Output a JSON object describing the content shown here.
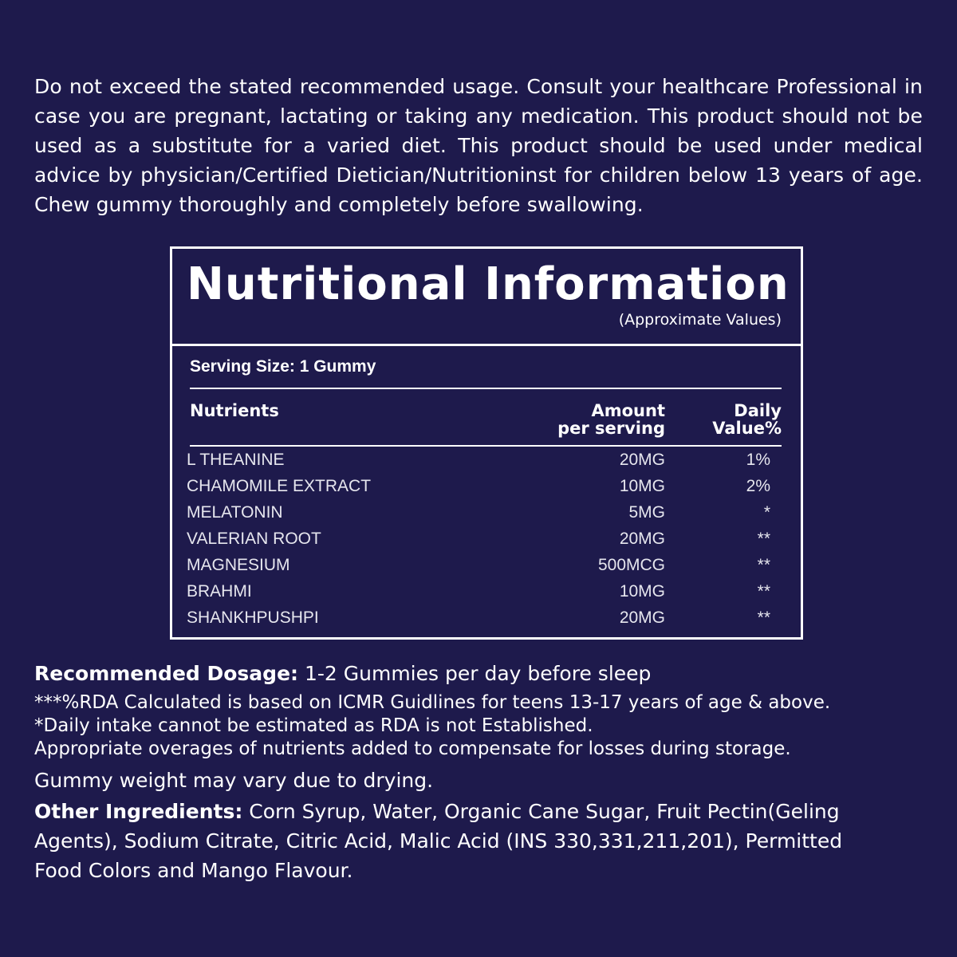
{
  "warning": "Do not exceed the stated recommended usage. Consult your healthcare Professional in case you are pregnant, lactating or taking any medication. This product should not be used as a substitute for a varied diet. This product should be used under medical advice by physician/Certified Dietician/Nutritioninst for children below 13 years of age. Chew gummy thoroughly and completely before swallowing.",
  "panel": {
    "title": "Nutritional Information",
    "subtitle": "(Approximate Values)",
    "serving_size": "Serving Size: 1 Gummy",
    "headers": {
      "nutrients": "Nutrients",
      "amount_1": "Amount",
      "amount_2": "per serving",
      "dv_1": "Daily",
      "dv_2": "Value%"
    },
    "rows": [
      {
        "name": "L THEANINE",
        "amount": "20MG",
        "dv": "1%"
      },
      {
        "name": "CHAMOMILE EXTRACT",
        "amount": "10MG",
        "dv": "2%"
      },
      {
        "name": "MELATONIN",
        "amount": "5MG",
        "dv": "*"
      },
      {
        "name": "VALERIAN ROOT",
        "amount": "20MG",
        "dv": "**"
      },
      {
        "name": "MAGNESIUM",
        "amount": "500MCG",
        "dv": "**"
      },
      {
        "name": "BRAHMI",
        "amount": "10MG",
        "dv": "**"
      },
      {
        "name": "SHANKHPUSHPI",
        "amount": "20MG",
        "dv": "**"
      }
    ]
  },
  "dosage": {
    "label": "Recommended Dosage:",
    "value": " 1-2 Gummies per day before sleep"
  },
  "notes": [
    "***%RDA Calculated is based on ICMR Guidlines for teens 13-17 years of age & above.",
    "*Daily intake cannot be estimated as RDA is not Established.",
    "Appropriate overages of nutrients added to compensate for losses during storage."
  ],
  "weight_note": "Gummy weight may vary due to drying.",
  "other": {
    "label": "Other Ingredients:",
    "value": " Corn Syrup, Water, Organic Cane Sugar, Fruit Pectin(Geling Agents), Sodium Citrate, Citric Acid, Malic Acid (INS 330,331,211,201), Permitted Food Colors and Mango Flavour."
  },
  "colors": {
    "background": "#1e1a4c",
    "text": "#ffffff"
  }
}
